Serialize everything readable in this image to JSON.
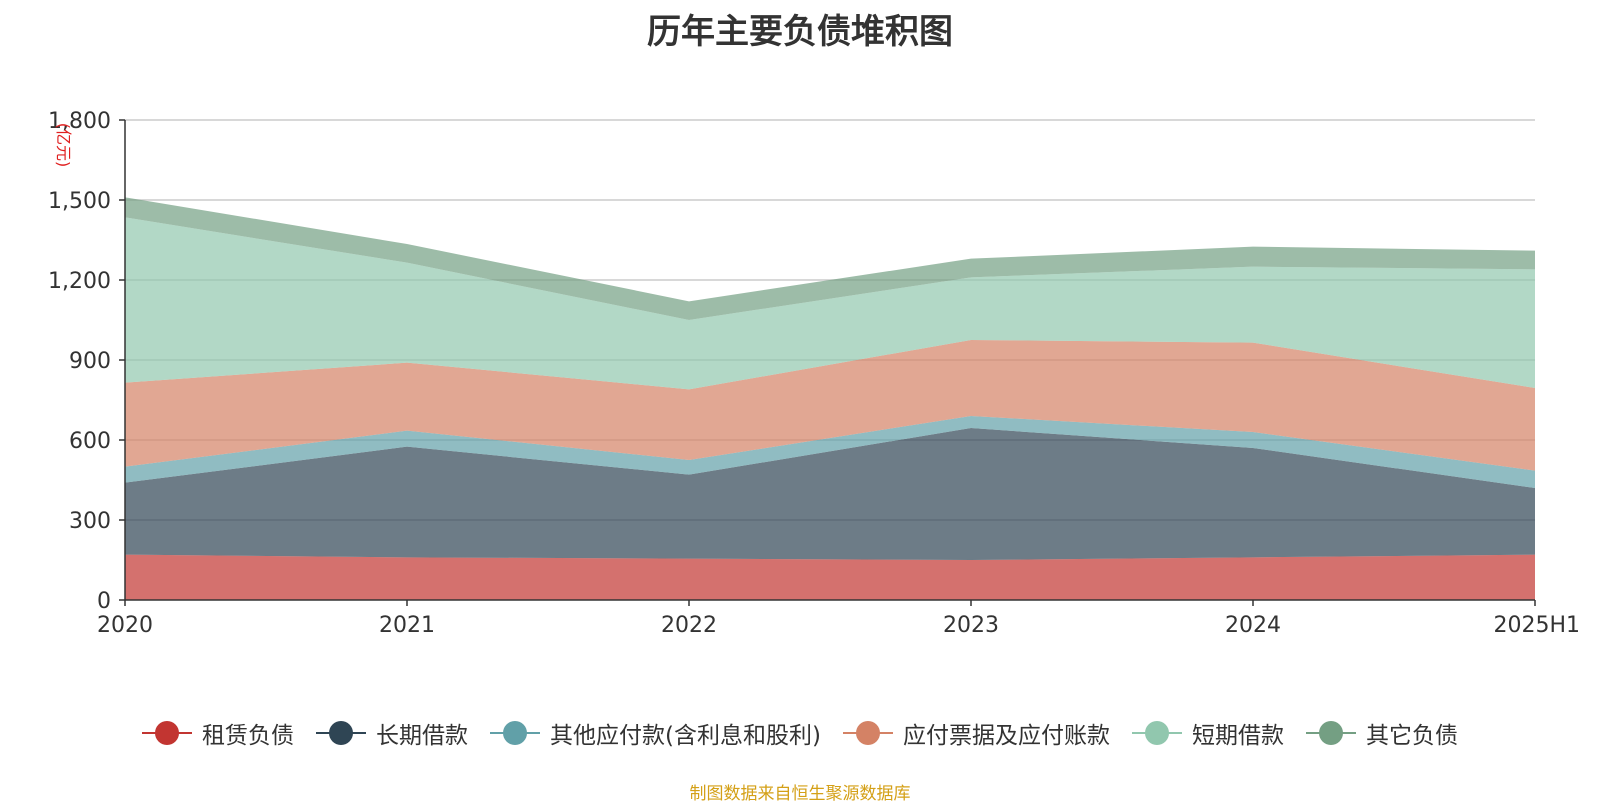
{
  "source_note": "制图数据来自恒生聚源数据库",
  "chart_data": {
    "type": "area",
    "stacked": true,
    "title": "历年主要负债堆积图",
    "ylabel": "(亿元)",
    "ylim": [
      0,
      1800
    ],
    "yticks": [
      0,
      300,
      600,
      900,
      1200,
      1500,
      1800
    ],
    "ytick_labels": [
      "0",
      "300",
      "600",
      "900",
      "1,200",
      "1,500",
      "1,800"
    ],
    "categories": [
      "2020",
      "2021",
      "2022",
      "2023",
      "2024",
      "2025H1"
    ],
    "grid": true,
    "legend_position": "bottom",
    "series": [
      {
        "name": "租赁负债",
        "color": "#c23531",
        "values": [
          170,
          160,
          155,
          150,
          160,
          170
        ]
      },
      {
        "name": "长期借款",
        "color": "#2f4554",
        "values": [
          270,
          415,
          315,
          495,
          410,
          250
        ]
      },
      {
        "name": "其他应付款(含利息和股利)",
        "color": "#61a0a8",
        "values": [
          60,
          60,
          55,
          45,
          60,
          65
        ]
      },
      {
        "name": "应付票据及应付账款",
        "color": "#d48265",
        "values": [
          315,
          255,
          265,
          285,
          335,
          310
        ]
      },
      {
        "name": "短期借款",
        "color": "#91c7ae",
        "values": [
          620,
          375,
          260,
          235,
          285,
          445
        ]
      },
      {
        "name": "其它负债",
        "color": "#749f83",
        "values": [
          75,
          70,
          70,
          70,
          75,
          70
        ]
      }
    ]
  }
}
